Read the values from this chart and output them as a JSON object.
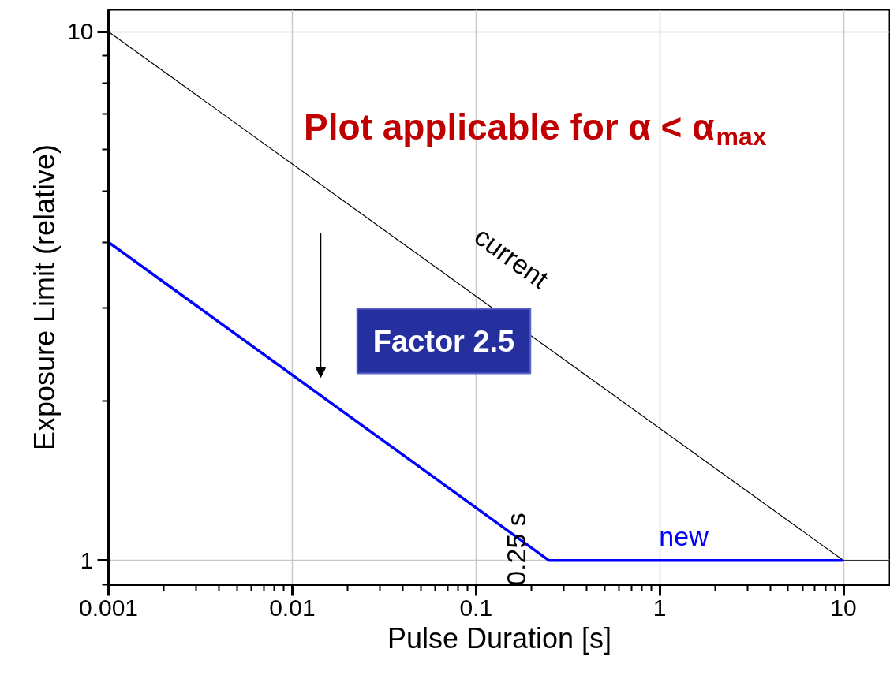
{
  "chart_data": {
    "type": "line",
    "log": "xy",
    "grid": true,
    "line_style": "solid",
    "marker": "none",
    "xlabel": "Pulse Duration [s]",
    "ylabel": "Exposure Limit (relative)",
    "xlim": [
      0.001,
      18
    ],
    "ylim": [
      0.9,
      11
    ],
    "xticks": [
      0.001,
      0.01,
      0.1,
      1,
      10
    ],
    "yticks": [
      1,
      10
    ],
    "series": [
      {
        "name": "current",
        "color": "#000000",
        "x": [
          0.001,
          10,
          18
        ],
        "values": [
          10,
          1,
          1
        ]
      },
      {
        "name": "new",
        "color": "#0000ff",
        "x": [
          0.001,
          0.25,
          10
        ],
        "values": [
          4,
          1,
          1
        ]
      }
    ],
    "annotations": [
      "Plot applicable for α < α$_{max}$",
      "Factor 2.5",
      {
        "text": "0.25 s",
        "x": 0.25,
        "y": 1
      }
    ]
  }
}
